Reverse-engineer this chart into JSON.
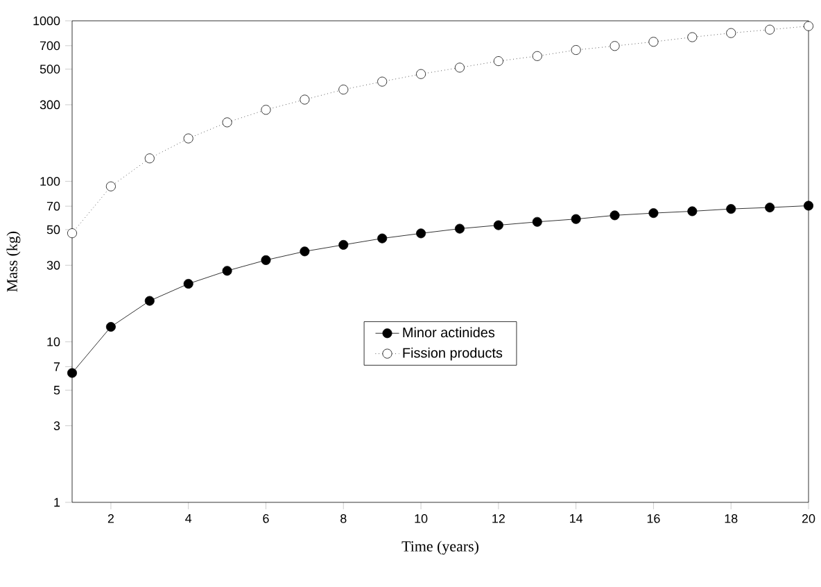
{
  "chart_data": {
    "type": "line",
    "xlabel": "Time (years)",
    "ylabel": "Mass (kg)",
    "x": [
      1,
      2,
      3,
      4,
      5,
      6,
      7,
      8,
      9,
      10,
      11,
      12,
      13,
      14,
      15,
      16,
      17,
      18,
      19,
      20
    ],
    "series": [
      {
        "name": "Minor actinides",
        "color": "#000000",
        "marker": "circle",
        "line_style": "solid",
        "values": [
          6.4,
          12.4,
          18.0,
          23.0,
          27.7,
          32.3,
          36.6,
          40.2,
          44.1,
          47.4,
          50.7,
          53.3,
          55.9,
          58.2,
          61.4,
          63.4,
          65.1,
          67.3,
          68.7,
          70.5
        ]
      },
      {
        "name": "Fission products",
        "color": "#000000",
        "marker": "circle",
        "line_style": "dotted",
        "values": [
          47.5,
          93,
          139,
          185,
          233,
          279,
          323,
          373,
          418,
          466,
          511,
          561,
          603,
          658,
          697,
          740,
          791,
          839,
          881,
          927
        ]
      }
    ],
    "log": "y",
    "xlim": [
      1,
      20
    ],
    "ylim": [
      1,
      1000
    ],
    "xticks": [
      2,
      4,
      6,
      8,
      10,
      12,
      14,
      16,
      18,
      20
    ],
    "yticks": [
      1,
      3,
      5,
      7,
      10,
      30,
      50,
      70,
      100,
      300,
      500,
      700,
      1000
    ],
    "legend": "center",
    "grid": false
  }
}
